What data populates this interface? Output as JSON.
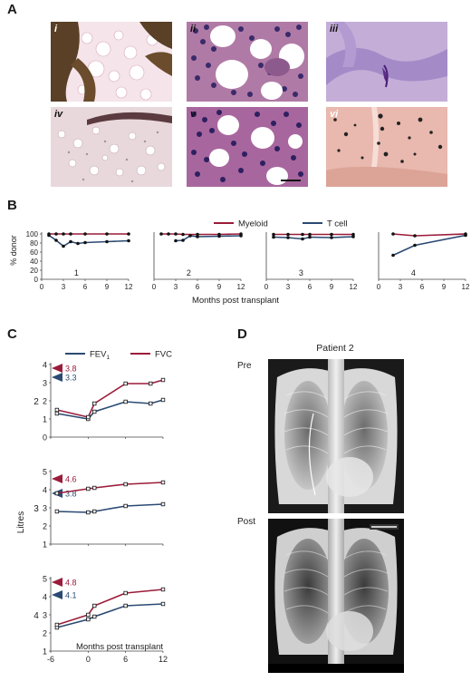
{
  "panel_a": {
    "letter": "A",
    "tiles": [
      {
        "label": "i",
        "name": "tile-i"
      },
      {
        "label": "ii",
        "name": "tile-ii"
      },
      {
        "label": "iii",
        "name": "tile-iii"
      },
      {
        "label": "iv",
        "name": "tile-iv"
      },
      {
        "label": "v",
        "name": "tile-v"
      },
      {
        "label": "vi",
        "name": "tile-vi"
      }
    ]
  },
  "panel_b": {
    "letter": "B",
    "ylabel": "% donor",
    "xlabel": "Months post transplant",
    "legend": [
      {
        "name": "Myeloid",
        "color": "#9b1c3a"
      },
      {
        "name": "T cell",
        "color": "#2b4a73"
      }
    ]
  },
  "panel_c": {
    "letter": "C",
    "ylabel": "Litres",
    "xlabel": "Months post transplant",
    "legend": [
      {
        "name": "FEV",
        "sub": "1",
        "color": "#2b4a73"
      },
      {
        "name": "FVC",
        "color": "#9b1c3a"
      }
    ]
  },
  "panel_d": {
    "letter": "D",
    "title": "Patient 2",
    "pre_label": "Pre",
    "post_label": "Post"
  },
  "chart_data": [
    {
      "type": "line",
      "panel": "B",
      "subpanel": "1",
      "x_ticks": [
        0,
        3,
        6,
        9,
        12
      ],
      "y_ticks": [
        0,
        20,
        40,
        60,
        80,
        100
      ],
      "ylim": [
        0,
        100
      ],
      "xlim": [
        0,
        12
      ],
      "series": [
        {
          "name": "Myeloid",
          "x": [
            1,
            2,
            3,
            4,
            6,
            9,
            12
          ],
          "values": [
            100,
            100,
            100,
            100,
            100,
            100,
            100
          ]
        },
        {
          "name": "T cell",
          "x": [
            1,
            2,
            3,
            4,
            5,
            6,
            9,
            12
          ],
          "values": [
            97,
            86,
            73,
            83,
            79,
            81,
            83,
            85
          ]
        }
      ]
    },
    {
      "type": "line",
      "panel": "B",
      "subpanel": "2",
      "x_ticks": [
        0,
        3,
        6,
        9,
        12
      ],
      "y_ticks": [
        0,
        20,
        40,
        60,
        80,
        100
      ],
      "ylim": [
        0,
        100
      ],
      "xlim": [
        0,
        12
      ],
      "series": [
        {
          "name": "Myeloid",
          "x": [
            1,
            2,
            3,
            4,
            6,
            9,
            12
          ],
          "values": [
            100,
            100,
            100,
            99,
            99,
            99,
            100
          ]
        },
        {
          "name": "T cell",
          "x": [
            3,
            4,
            5,
            6,
            9,
            12
          ],
          "values": [
            85,
            86,
            96,
            94,
            95,
            96
          ]
        }
      ]
    },
    {
      "type": "line",
      "panel": "B",
      "subpanel": "3",
      "x_ticks": [
        0,
        3,
        6,
        9,
        12
      ],
      "y_ticks": [
        0,
        20,
        40,
        60,
        80,
        100
      ],
      "ylim": [
        0,
        100
      ],
      "xlim": [
        0,
        12
      ],
      "series": [
        {
          "name": "Myeloid",
          "x": [
            1,
            3,
            5,
            6,
            9,
            12
          ],
          "values": [
            99,
            99,
            99,
            99,
            99,
            99
          ]
        },
        {
          "name": "T cell",
          "x": [
            1,
            3,
            5,
            6,
            9,
            12
          ],
          "values": [
            93,
            92,
            89,
            93,
            92,
            94
          ]
        }
      ]
    },
    {
      "type": "line",
      "panel": "B",
      "subpanel": "4",
      "x_ticks": [
        0,
        3,
        6,
        9,
        12
      ],
      "y_ticks": [
        0,
        20,
        40,
        60,
        80,
        100
      ],
      "ylim": [
        0,
        100
      ],
      "xlim": [
        0,
        12
      ],
      "series": [
        {
          "name": "Myeloid",
          "x": [
            2,
            5,
            12
          ],
          "values": [
            100,
            96,
            100
          ]
        },
        {
          "name": "T cell",
          "x": [
            2,
            5,
            12
          ],
          "values": [
            53,
            75,
            97
          ]
        }
      ]
    },
    {
      "type": "line",
      "panel": "C",
      "subpanel": "2",
      "x_ticks": [
        -6,
        0,
        6,
        12
      ],
      "y_ticks": [
        0,
        1,
        2,
        3,
        4
      ],
      "ylim": [
        0,
        4
      ],
      "xlim": [
        -6,
        12
      ],
      "markers": [
        {
          "series": "FVC",
          "value": 3.8,
          "label": "3.8"
        },
        {
          "series": "FEV1",
          "value": 3.3,
          "label": "3.3"
        }
      ],
      "series": [
        {
          "name": "FEV1",
          "x": [
            -5,
            0,
            1,
            6,
            10,
            12
          ],
          "values": [
            1.3,
            1.0,
            1.4,
            1.95,
            1.85,
            2.05
          ]
        },
        {
          "name": "FVC",
          "x": [
            -5,
            0,
            1,
            6,
            10,
            12
          ],
          "values": [
            1.5,
            1.1,
            1.85,
            2.95,
            2.95,
            3.15
          ]
        }
      ]
    },
    {
      "type": "line",
      "panel": "C",
      "subpanel": "3",
      "x_ticks": [
        -6,
        0,
        6,
        12
      ],
      "y_ticks": [
        1,
        2,
        3,
        4,
        5
      ],
      "ylim": [
        1,
        5
      ],
      "xlim": [
        -6,
        12
      ],
      "markers": [
        {
          "series": "FVC",
          "value": 4.6,
          "label": "4.6"
        },
        {
          "series": "FEV1",
          "value": 3.8,
          "label": "3.8"
        }
      ],
      "series": [
        {
          "name": "FEV1",
          "x": [
            -5,
            0,
            1,
            6,
            12
          ],
          "values": [
            2.8,
            2.75,
            2.8,
            3.1,
            3.2
          ]
        },
        {
          "name": "FVC",
          "x": [
            -5,
            0,
            1,
            6,
            12
          ],
          "values": [
            3.8,
            4.05,
            4.1,
            4.3,
            4.4
          ]
        }
      ]
    },
    {
      "type": "line",
      "panel": "C",
      "subpanel": "4",
      "x_ticks": [
        -6,
        0,
        6,
        12
      ],
      "y_ticks": [
        1,
        2,
        3,
        4,
        5
      ],
      "ylim": [
        1,
        5
      ],
      "xlim": [
        -6,
        12
      ],
      "markers": [
        {
          "series": "FVC",
          "value": 4.8,
          "label": "4.8"
        },
        {
          "series": "FEV1",
          "value": 4.1,
          "label": "4.1"
        }
      ],
      "series": [
        {
          "name": "FEV1",
          "x": [
            -5,
            0,
            1,
            6,
            12
          ],
          "values": [
            2.3,
            2.75,
            2.9,
            3.5,
            3.6
          ]
        },
        {
          "name": "FVC",
          "x": [
            -5,
            0,
            1,
            6,
            12
          ],
          "values": [
            2.45,
            3.0,
            3.5,
            4.2,
            4.4
          ]
        }
      ]
    }
  ]
}
